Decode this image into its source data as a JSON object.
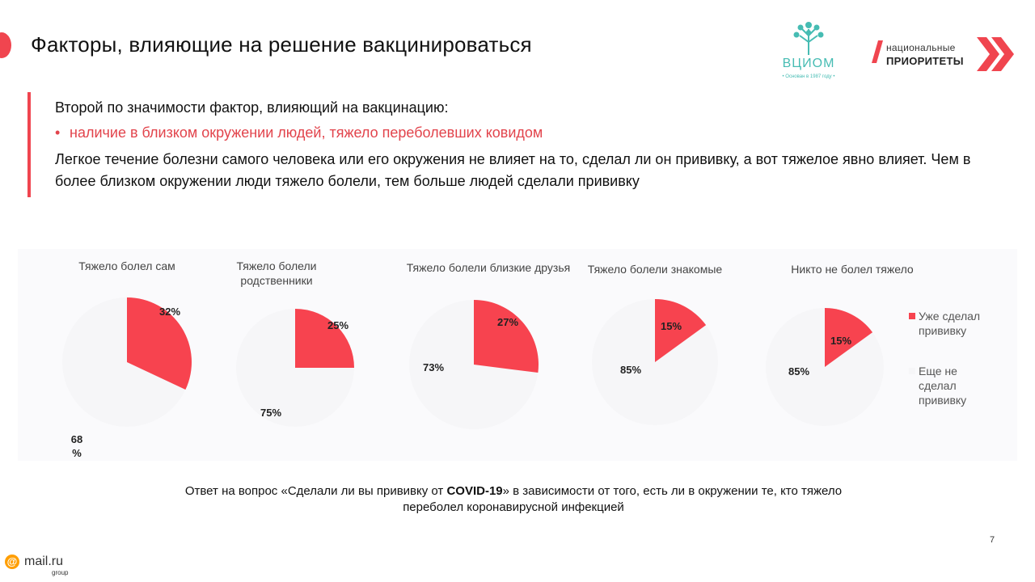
{
  "header": {
    "title": "Факторы, влияющие на решение вакцинироваться"
  },
  "logos": {
    "vciom": {
      "name": "ВЦИОМ",
      "tagline": "• Основан в 1987 году •",
      "icon": "tree-icon"
    },
    "national_priorities": {
      "line1": "национальные",
      "line2": "ПРИОРИТЕТЫ",
      "icon": "double-chevron-icon"
    }
  },
  "text": {
    "intro": "Второй по значимости фактор, влияющий на вакцинацию:",
    "bullet": "наличие в близком окружении людей, тяжело переболевших ковидом",
    "body": "Легкое течение болезни самого человека или его окружения не влияет на то, сделал ли он прививку, а вот тяжелое явно влияет. Чем в более близком окружении люди тяжело болели, тем больше людей сделали прививку"
  },
  "colors": {
    "accent": "#f0454f",
    "vaccinated": "#f7434f",
    "not_vaccinated": "#f6f6f8",
    "vciom": "#46bcb3"
  },
  "chart_data": {
    "type": "pie",
    "series_labels": [
      "Уже сделал прививку",
      "Еще не сделал прививку"
    ],
    "legend": {
      "placement": "right",
      "items": [
        {
          "line1": "Уже сделал",
          "line2": "прививку",
          "color": "#f7434f"
        },
        {
          "line1": "Еще не",
          "line2": "сделал",
          "line3": "прививку",
          "color": "#f6f6f8"
        }
      ]
    },
    "pies": [
      {
        "title_line1": "Тяжело болел сам",
        "title_line2": "",
        "vaccinated": 32,
        "not_vaccinated": 68,
        "label_vaccinated": "32%",
        "label_not_line1": "68",
        "label_not_line2": "%"
      },
      {
        "title_line1": "Тяжело болели",
        "title_line2": "родственники",
        "vaccinated": 25,
        "not_vaccinated": 75,
        "label_vaccinated": "25%",
        "label_not_line1": "75%",
        "label_not_line2": ""
      },
      {
        "title_line1": "Тяжело болели близкие друзья",
        "title_line2": "",
        "vaccinated": 27,
        "not_vaccinated": 73,
        "label_vaccinated": "27%",
        "label_not_line1": "73%",
        "label_not_line2": ""
      },
      {
        "title_line1": "Тяжело болели знакомые",
        "title_line2": "",
        "vaccinated": 15,
        "not_vaccinated": 85,
        "label_vaccinated": "15%",
        "label_not_line1": "85%",
        "label_not_line2": ""
      },
      {
        "title_line1": "Никто не болел тяжело",
        "title_line2": "",
        "vaccinated": 15,
        "not_vaccinated": 85,
        "label_vaccinated": "15%",
        "label_not_line1": "85%",
        "label_not_line2": ""
      }
    ]
  },
  "footnote": {
    "line1_pre": "Ответ на вопрос «Сделали ли вы прививку от ",
    "line1_bold": "COVID-19",
    "line1_post": "» в зависимости от того, есть ли в окружении те, кто тяжело",
    "line2": "переболел коронавирусной инфекцией"
  },
  "footer": {
    "page_number": "7",
    "mailru_name": "mail.ru",
    "mailru_group": "group",
    "mailru_icon": "at-sign-icon"
  }
}
